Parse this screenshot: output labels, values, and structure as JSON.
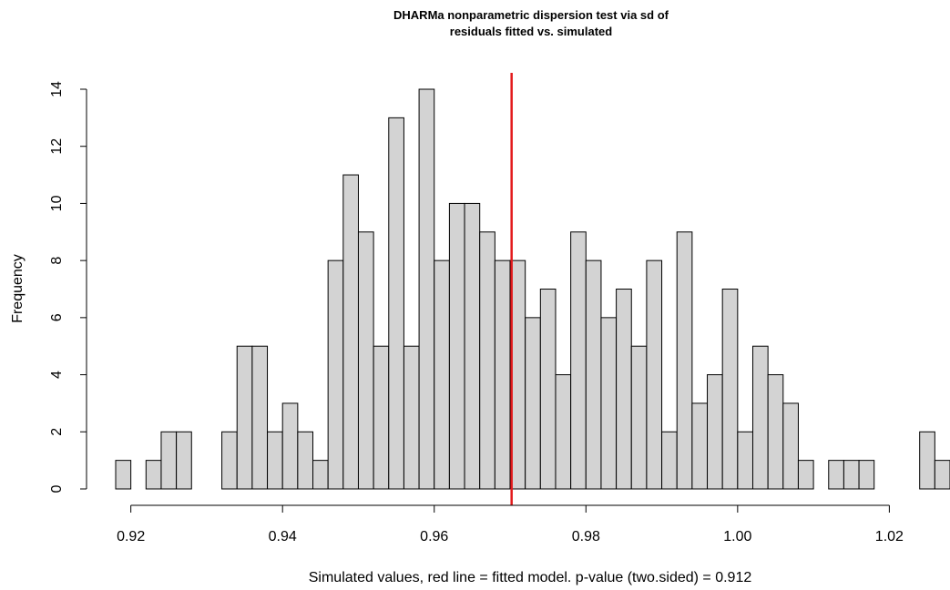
{
  "chart_data": {
    "type": "bar",
    "title_lines": [
      "DHARMa nonparametric dispersion test via sd of",
      "residuals fitted vs. simulated"
    ],
    "xlabel": "Simulated values, red line = fitted model. p-value (two.sided) = 0.912",
    "ylabel": "Frequency",
    "xlim": [
      0.918,
      1.028
    ],
    "ylim": [
      0,
      14
    ],
    "x_ticks": [
      "0.92",
      "0.94",
      "0.96",
      "0.98",
      "1.00",
      "1.02"
    ],
    "y_ticks": [
      "0",
      "2",
      "4",
      "6",
      "8",
      "10",
      "12",
      "14"
    ],
    "bin_start": 0.918,
    "bin_width": 0.002,
    "counts": [
      1,
      0,
      1,
      2,
      2,
      0,
      0,
      2,
      5,
      5,
      2,
      3,
      2,
      1,
      8,
      11,
      9,
      5,
      13,
      5,
      14,
      8,
      10,
      10,
      9,
      8,
      8,
      6,
      7,
      4,
      9,
      8,
      6,
      7,
      5,
      8,
      2,
      9,
      3,
      4,
      7,
      2,
      5,
      4,
      3,
      1,
      0,
      1,
      1,
      1,
      0,
      0,
      0,
      2,
      1
    ],
    "observed_value": 0.9702,
    "observed_line_color": "#e31a1c",
    "bar_fill": "#d3d3d3"
  }
}
